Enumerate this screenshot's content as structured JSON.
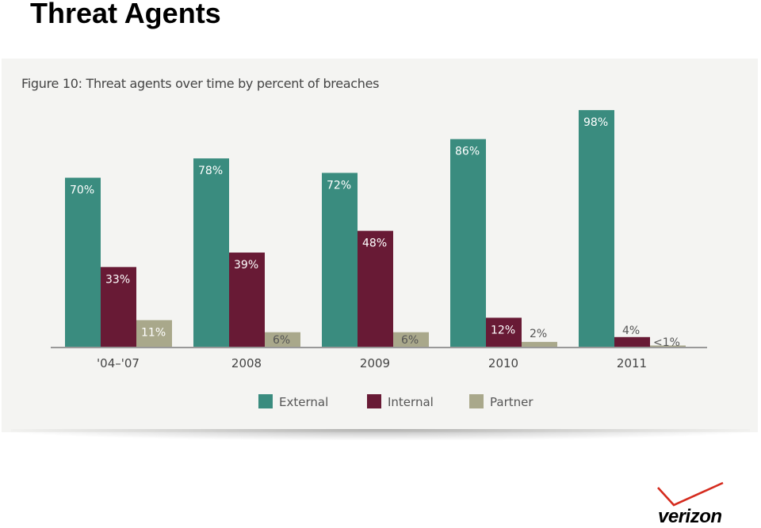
{
  "slide": {
    "title": "Threat Agents"
  },
  "figure": {
    "title": "Figure 10: Threat agents over time by percent of breaches"
  },
  "logo": {
    "text": "verizon"
  },
  "chart_data": {
    "type": "bar",
    "title": "Figure 10: Threat agents over time by percent of breaches",
    "xlabel": "",
    "ylabel": "",
    "ylim": [
      0,
      100
    ],
    "grid": false,
    "legend_position": "bottom",
    "categories": [
      "'04–'07",
      "2008",
      "2009",
      "2010",
      "2011"
    ],
    "series": [
      {
        "name": "External",
        "color": "#3a8c7f",
        "values": [
          70,
          78,
          72,
          86,
          98
        ],
        "labels": [
          "70%",
          "78%",
          "72%",
          "86%",
          "98%"
        ]
      },
      {
        "name": "Internal",
        "color": "#681a35",
        "values": [
          33,
          39,
          48,
          12,
          4
        ],
        "labels": [
          "33%",
          "39%",
          "48%",
          "12%",
          "4%"
        ]
      },
      {
        "name": "Partner",
        "color": "#a9a88b",
        "values": [
          11,
          6,
          6,
          2,
          0.5
        ],
        "labels": [
          "11%",
          "6%",
          "6%",
          "2%",
          "<1%"
        ]
      }
    ]
  }
}
